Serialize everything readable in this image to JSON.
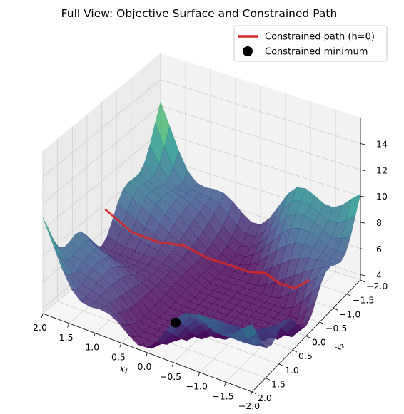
{
  "chart_data": {
    "type": "surface3d",
    "title": "Full View: Objective Surface and Constrained Path",
    "xlabel": "x₁",
    "ylabel": "x₂",
    "xlim": [
      -2,
      2
    ],
    "ylim": [
      -2,
      2
    ],
    "zlim": [
      3.6,
      15
    ],
    "x_ticks": [
      "2.0",
      "1.5",
      "1.0",
      "0.5",
      "0.0",
      "−0.5",
      "−1.0",
      "−1.5",
      "−2.0"
    ],
    "y_ticks": [
      "−2.0",
      "−1.5",
      "−1.0",
      "−0.5",
      "0.0",
      "0.5",
      "1.0",
      "1.5",
      "2.0"
    ],
    "z_ticks": [
      "4",
      "6",
      "8",
      "10",
      "12",
      "14"
    ],
    "colormap": "viridis",
    "grid": true,
    "legend_position": "top-right",
    "series": [
      {
        "name": "Constrained path (h=0)",
        "kind": "line",
        "color": "#d62728",
        "x": [
          2.0,
          1.6,
          1.2,
          0.8,
          0.4,
          0.0,
          -0.4,
          -0.8,
          -1.2,
          -1.6,
          -2.0
        ],
        "y": [
          -0.12,
          -0.33,
          -0.53,
          -0.72,
          -0.85,
          -0.9,
          -0.85,
          -0.72,
          -0.53,
          -0.33,
          -0.12
        ],
        "z": [
          7.6,
          6.0,
          5.4,
          5.3,
          4.6,
          4.5,
          4.6,
          5.3,
          5.4,
          6.0,
          7.6
        ]
      },
      {
        "name": "Constrained minimum",
        "kind": "point",
        "color": "#000000",
        "x": [
          0.0
        ],
        "y": [
          1.0
        ],
        "z": [
          3.9
        ]
      }
    ]
  }
}
